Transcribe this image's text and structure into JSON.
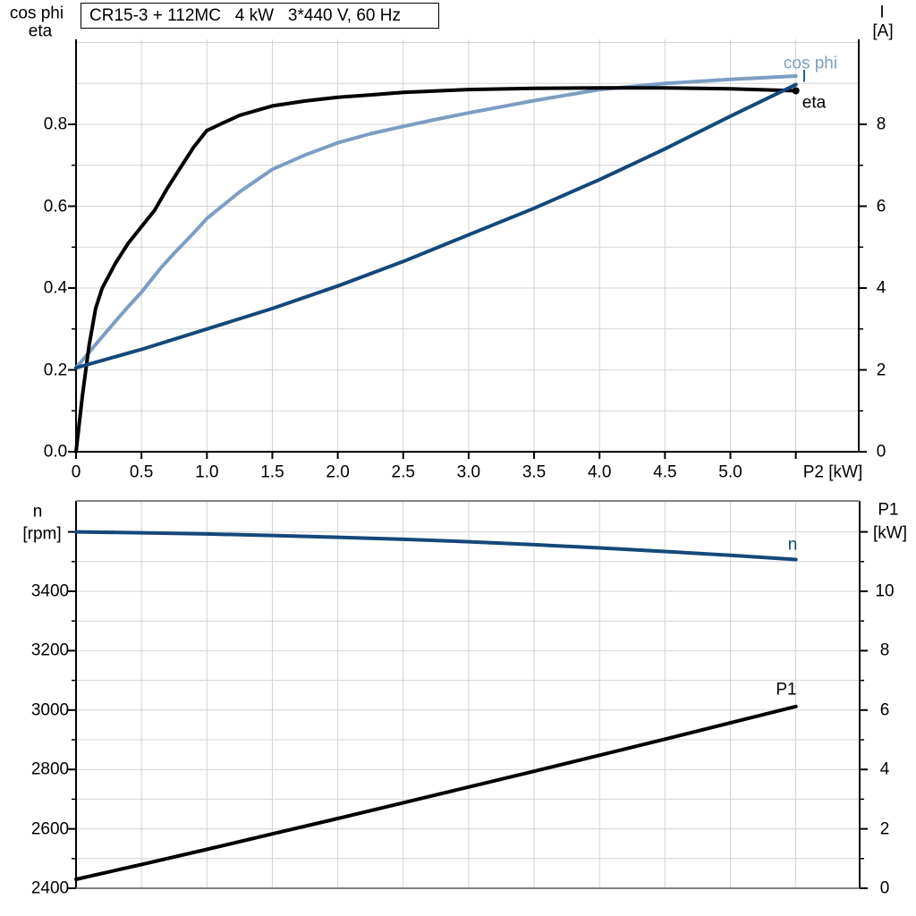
{
  "header": {
    "title": "CR15-3 + 112MC   4 kW   3*440 V, 60 Hz"
  },
  "colors": {
    "light_blue": "#7d9dc2",
    "dark_blue": "#14487a",
    "black": "#000000",
    "grid": "#d4d4d4",
    "frame_gray": "#808080"
  },
  "chart_data": [
    {
      "type": "line",
      "title": "CR15-3 + 112MC   4 kW   3*440 V, 60 Hz",
      "xlabel": "P2 [kW]",
      "ylabel_left": "cos phi / eta",
      "ylabel_right": "I [A]",
      "xlim": [
        0,
        5.98
      ],
      "ylim_left": [
        0,
        1.02
      ],
      "ylim_right": [
        0,
        10.2
      ],
      "grid": "on",
      "corner_labels": {
        "left": [
          "cos phi",
          "eta"
        ],
        "right": [
          "I",
          "[A]"
        ]
      },
      "x_ticks": [
        0,
        0.5,
        1,
        1.5,
        2,
        2.5,
        3,
        3.5,
        4,
        4.5,
        5
      ],
      "x_tick_labels": [
        "0",
        "0.5",
        "1.0",
        "1.5",
        "2.0",
        "2.5",
        "3.0",
        "3.5",
        "4.0",
        "4.5",
        "5.0"
      ],
      "left_ticks": [
        0,
        0.2,
        0.4,
        0.6,
        0.8
      ],
      "left_tick_labels": [
        "0.0",
        "0.2",
        "0.4",
        "0.6",
        "0.8"
      ],
      "right_ticks": [
        0,
        2,
        4,
        6,
        8
      ],
      "right_tick_labels": [
        "0",
        "2",
        "4",
        "6",
        "8"
      ],
      "series": [
        {
          "name": "cos phi",
          "axis": "left",
          "color": "#7d9dc2",
          "x": [
            0,
            0.1,
            0.25,
            0.4,
            0.5,
            0.65,
            0.75,
            0.9,
            1,
            1.25,
            1.5,
            1.75,
            2,
            2.25,
            2.5,
            2.75,
            3,
            3.5,
            4,
            4.5,
            5,
            5.5
          ],
          "y": [
            0.205,
            0.243,
            0.3,
            0.355,
            0.39,
            0.45,
            0.485,
            0.535,
            0.57,
            0.635,
            0.69,
            0.725,
            0.755,
            0.777,
            0.795,
            0.812,
            0.828,
            0.858,
            0.885,
            0.9,
            0.91,
            0.918
          ]
        },
        {
          "name": "eta",
          "axis": "left",
          "color": "#000000",
          "x": [
            0,
            0.05,
            0.1,
            0.15,
            0.2,
            0.25,
            0.3,
            0.4,
            0.5,
            0.6,
            0.7,
            0.8,
            0.9,
            1,
            1.1,
            1.25,
            1.5,
            1.75,
            2,
            2.25,
            2.5,
            3,
            3.5,
            4,
            4.5,
            5,
            5.5
          ],
          "y": [
            0,
            0.14,
            0.26,
            0.35,
            0.4,
            0.43,
            0.46,
            0.51,
            0.55,
            0.59,
            0.645,
            0.695,
            0.745,
            0.785,
            0.8,
            0.822,
            0.845,
            0.857,
            0.866,
            0.872,
            0.878,
            0.885,
            0.888,
            0.889,
            0.889,
            0.887,
            0.882
          ]
        },
        {
          "name": "I",
          "axis": "right",
          "color": "#14487a",
          "x": [
            0,
            0.5,
            1,
            1.5,
            2,
            2.5,
            3,
            3.5,
            4,
            4.5,
            5,
            5.5
          ],
          "y": [
            2.05,
            2.5,
            3,
            3.5,
            4.05,
            4.65,
            5.3,
            5.95,
            6.65,
            7.4,
            8.2,
            8.97
          ]
        }
      ]
    },
    {
      "type": "line",
      "xlabel": "",
      "ylabel_left": "n [rpm]",
      "ylabel_right": "P1 [kW]",
      "xlim": [
        0,
        5.98
      ],
      "ylim_left": [
        2400,
        3710
      ],
      "ylim_right": [
        0,
        13.1
      ],
      "grid": "on",
      "corner_labels": {
        "left": [
          "n",
          "[rpm]"
        ],
        "right": [
          "P1",
          "[kW]"
        ]
      },
      "left_ticks": [
        2400,
        2600,
        2800,
        3000,
        3200,
        3400
      ],
      "left_tick_labels": [
        "2400",
        "2600",
        "2800",
        "3000",
        "3200",
        "3400"
      ],
      "right_ticks": [
        0,
        2,
        4,
        6,
        8,
        10
      ],
      "right_tick_labels": [
        "0",
        "2",
        "4",
        "6",
        "8",
        "10"
      ],
      "series": [
        {
          "name": "n",
          "axis": "left",
          "color": "#14487a",
          "x": [
            0,
            0.5,
            1,
            1.5,
            2,
            2.5,
            3,
            3.5,
            4,
            4.5,
            5,
            5.5
          ],
          "y": [
            3600,
            3597,
            3593,
            3588,
            3582,
            3575,
            3567,
            3557,
            3546,
            3534,
            3521,
            3507
          ]
        },
        {
          "name": "P1",
          "axis": "right",
          "color": "#000000",
          "x": [
            0,
            0.5,
            1,
            1.5,
            2,
            2.5,
            3,
            3.5,
            4,
            4.5,
            5,
            5.5
          ],
          "y": [
            0.3,
            0.8,
            1.31,
            1.83,
            2.35,
            2.88,
            3.41,
            3.94,
            4.48,
            5.02,
            5.57,
            6.12
          ]
        }
      ]
    }
  ]
}
